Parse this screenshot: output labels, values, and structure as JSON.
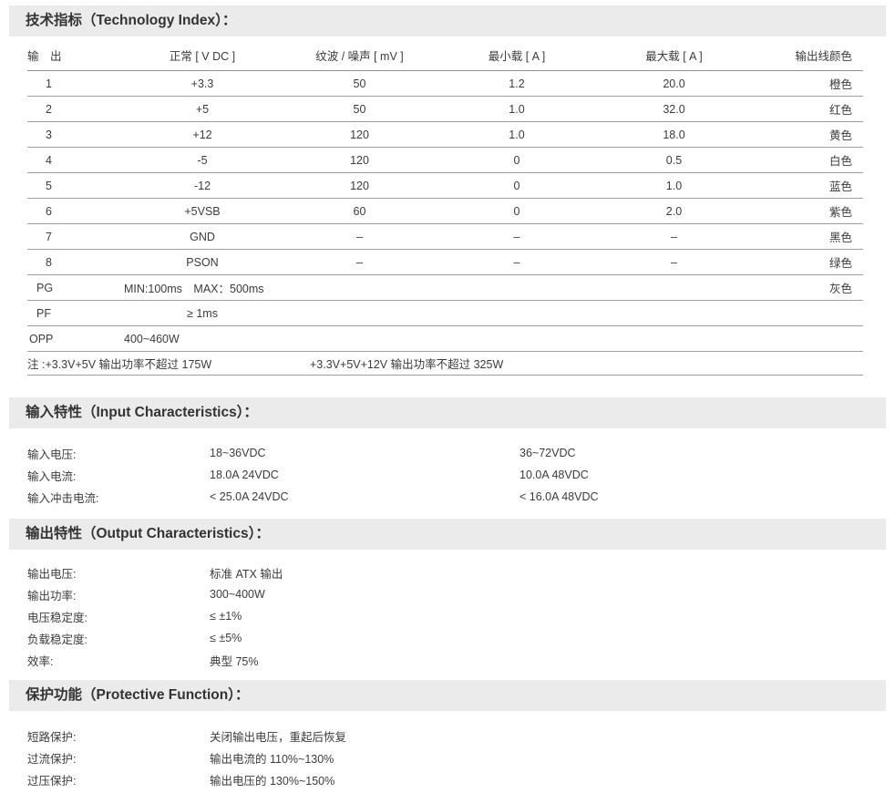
{
  "tech": {
    "title": "技术指标（Technology Index）：",
    "columns": [
      "输　出",
      "正常 [ V DC ]",
      "纹波 / 噪声 [ mV ]",
      "最小载 [ A ]",
      "最大载 [ A ]",
      "输出线颜色"
    ],
    "rows": [
      {
        "no": "1",
        "vdc": "+3.3",
        "ripple": "50",
        "min_a": "1.2",
        "max_a": "20.0",
        "color": "橙色"
      },
      {
        "no": "2",
        "vdc": "+5",
        "ripple": "50",
        "min_a": "1.0",
        "max_a": "32.0",
        "color": "红色"
      },
      {
        "no": "3",
        "vdc": "+12",
        "ripple": "120",
        "min_a": "1.0",
        "max_a": "18.0",
        "color": "黄色"
      },
      {
        "no": "4",
        "vdc": "-5",
        "ripple": "120",
        "min_a": "0",
        "max_a": "0.5",
        "color": "白色"
      },
      {
        "no": "5",
        "vdc": "-12",
        "ripple": "120",
        "min_a": "0",
        "max_a": "1.0",
        "color": "蓝色"
      },
      {
        "no": "6",
        "vdc": "+5VSB",
        "ripple": "60",
        "min_a": "0",
        "max_a": "2.0",
        "color": "紫色"
      },
      {
        "no": "7",
        "vdc": "GND",
        "ripple": "–",
        "min_a": "–",
        "max_a": "–",
        "color": "黑色"
      },
      {
        "no": "8",
        "vdc": "PSON",
        "ripple": "–",
        "min_a": "–",
        "max_a": "–",
        "color": "绿色"
      }
    ],
    "pg": {
      "label": "PG",
      "value": "MIN:100ms　MAX：500ms",
      "color": "灰色"
    },
    "pf": {
      "label": "PF",
      "value": "≥ 1ms"
    },
    "opp": {
      "label": "OPP",
      "value": "400~460W"
    },
    "note": {
      "left": "注 :+3.3V+5V 输出功率不超过 175W",
      "right": "+3.3V+5V+12V 输出功率不超过 325W"
    }
  },
  "input": {
    "title": "输入特性（Input Characteristics）：",
    "rows": [
      {
        "label": "输入电压:",
        "value": "18~36VDC",
        "value2": "36~72VDC"
      },
      {
        "label": "输入电流:",
        "value": "18.0A 24VDC",
        "value2": "10.0A 48VDC"
      },
      {
        "label": "输入冲击电流:",
        "value": "< 25.0A 24VDC",
        "value2": "< 16.0A 48VDC"
      }
    ]
  },
  "output": {
    "title": "输出特性（Output Characteristics）：",
    "rows": [
      {
        "label": "输出电压:",
        "value": "标准 ATX 输出"
      },
      {
        "label": "输出功率:",
        "value": "300~400W"
      },
      {
        "label": "电压稳定度:",
        "value": "≤ ±1%"
      },
      {
        "label": "负载稳定度:",
        "value": "≤ ±5%"
      },
      {
        "label": "效率:",
        "value": "典型 75%"
      }
    ]
  },
  "protect": {
    "title": "保护功能（Protective Function）：",
    "rows": [
      {
        "label": "短路保护:",
        "value": "关闭输出电压，重起后恢复"
      },
      {
        "label": "过流保护:",
        "value": "输出电流的 110%~130%"
      },
      {
        "label": "过压保护:",
        "value": "输出电压的 130%~150%"
      }
    ]
  },
  "colors": {
    "title_bar_bg": "#ebebeb",
    "text": "#3b3b3b",
    "rule": "#9c9c9c"
  }
}
